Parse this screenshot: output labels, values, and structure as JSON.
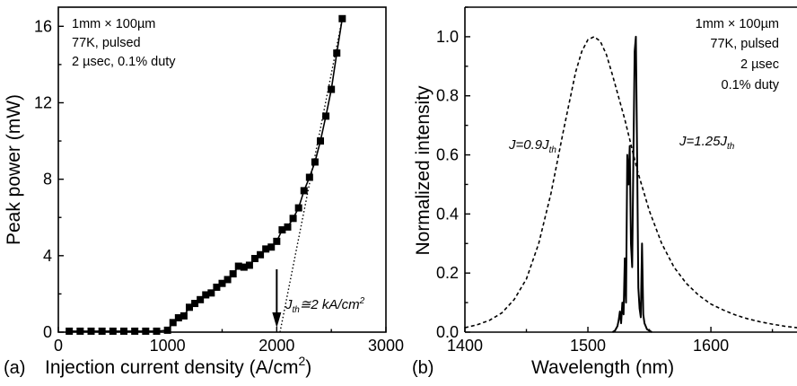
{
  "chart_data": [
    {
      "type": "scatter",
      "panel_label": "(a)",
      "xlabel": "Injection current density (A/cm",
      "xlabel_sup": "2",
      "xlabel_close": ")",
      "ylabel": "Peak power (mW)",
      "xlim": [
        0,
        3000
      ],
      "ylim": [
        0,
        17
      ],
      "xticks": [
        0,
        1000,
        2000,
        3000
      ],
      "yticks": [
        0,
        4,
        8,
        12,
        16
      ],
      "grid": false,
      "legend": "none",
      "annotations": [
        "1mm × 100µm",
        "77K, pulsed",
        "2 µsec, 0.1% duty"
      ],
      "threshold_label": {
        "prefix": "J",
        "sub": "th",
        "suffix": "≅2 kA/cm",
        "sup": "2"
      },
      "threshold_x": 2000,
      "series": [
        {
          "style": "markers+line",
          "x": [
            100,
            200,
            300,
            400,
            500,
            600,
            700,
            800,
            900,
            1000,
            1050,
            1100,
            1150,
            1200,
            1250,
            1300,
            1350,
            1400,
            1450,
            1500,
            1550,
            1600,
            1650,
            1700,
            1750,
            1800,
            1850,
            1900,
            1950,
            2000,
            2050,
            2100,
            2150,
            2200,
            2250,
            2300,
            2350,
            2400,
            2450,
            2500,
            2550,
            2600
          ],
          "y": [
            0.05,
            0.05,
            0.05,
            0.05,
            0.05,
            0.05,
            0.05,
            0.05,
            0.05,
            0.1,
            0.5,
            0.75,
            0.85,
            1.3,
            1.5,
            1.7,
            1.95,
            2.05,
            2.35,
            2.55,
            2.75,
            3.05,
            3.45,
            3.4,
            3.5,
            3.85,
            4.05,
            4.35,
            4.45,
            4.75,
            5.35,
            5.5,
            5.95,
            6.5,
            7.4,
            8.1,
            8.9,
            10.0,
            11.3,
            12.7,
            14.6,
            16.4
          ]
        },
        {
          "style": "dotted-fit",
          "x": [
            2030,
            2600
          ],
          "y": [
            0,
            16.4
          ]
        }
      ]
    },
    {
      "type": "line",
      "panel_label": "(b)",
      "xlabel": "Wavelength (nm)",
      "ylabel": "Normalized intensity",
      "xlim": [
        1400,
        1670
      ],
      "ylim": [
        0,
        1.1
      ],
      "xticks": [
        1400,
        1500,
        1600
      ],
      "yticks": [
        0.0,
        0.2,
        0.4,
        0.6,
        0.8,
        1.0
      ],
      "ytick_labels": [
        "0.0",
        "0.2",
        "0.4",
        "0.6",
        "0.8",
        "1.0"
      ],
      "grid": false,
      "legend": "none",
      "annotations": [
        "1mm × 100µm",
        "77K, pulsed",
        "2 µsec",
        "0.1% duty"
      ],
      "series_labels": [
        {
          "prefix": "J=0.9J",
          "sub": "th"
        },
        {
          "prefix": "J=1.25J",
          "sub": "th"
        }
      ],
      "series": [
        {
          "style": "dashed",
          "x": [
            1400,
            1410,
            1420,
            1430,
            1440,
            1450,
            1460,
            1470,
            1480,
            1490,
            1495,
            1500,
            1505,
            1510,
            1515,
            1520,
            1530,
            1540,
            1550,
            1560,
            1570,
            1580,
            1590,
            1600,
            1610,
            1620,
            1630,
            1640,
            1650,
            1660,
            1670
          ],
          "y": [
            0.015,
            0.025,
            0.04,
            0.065,
            0.11,
            0.18,
            0.3,
            0.47,
            0.68,
            0.88,
            0.95,
            0.99,
            1.0,
            0.985,
            0.94,
            0.87,
            0.72,
            0.55,
            0.41,
            0.3,
            0.22,
            0.165,
            0.125,
            0.095,
            0.075,
            0.058,
            0.045,
            0.035,
            0.027,
            0.02,
            0.015
          ]
        },
        {
          "style": "solid",
          "x": [
            1520,
            1522,
            1524,
            1525,
            1526,
            1527,
            1528,
            1529,
            1530,
            1531,
            1532,
            1533,
            1534,
            1535,
            1536,
            1537,
            1538,
            1539,
            1540,
            1541,
            1542,
            1543,
            1544,
            1545,
            1546,
            1547,
            1548,
            1550,
            1552
          ],
          "y": [
            0.0,
            0.005,
            0.02,
            0.04,
            0.07,
            0.03,
            0.1,
            0.06,
            0.25,
            0.1,
            0.6,
            0.5,
            0.63,
            0.3,
            0.22,
            0.6,
            0.95,
            1.0,
            0.6,
            0.15,
            0.08,
            0.05,
            0.3,
            0.06,
            0.03,
            0.02,
            0.01,
            0.005,
            0.0
          ]
        }
      ]
    }
  ]
}
